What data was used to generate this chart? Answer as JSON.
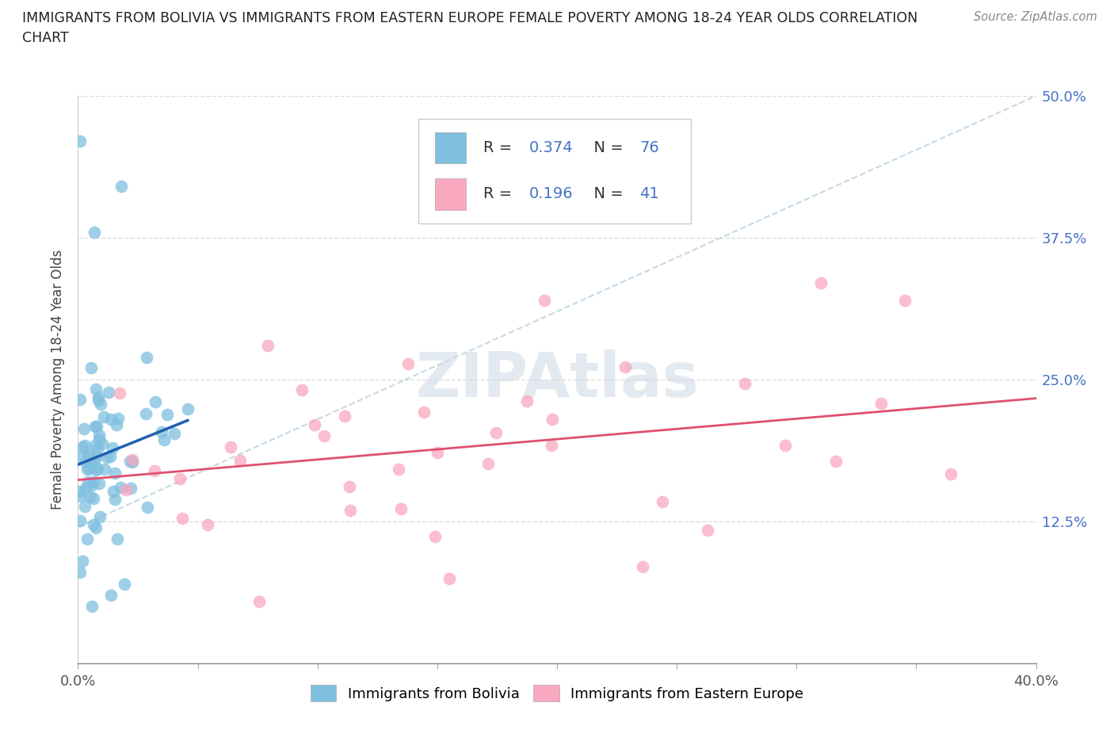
{
  "title": "IMMIGRANTS FROM BOLIVIA VS IMMIGRANTS FROM EASTERN EUROPE FEMALE POVERTY AMONG 18-24 YEAR OLDS CORRELATION\nCHART",
  "source": "Source: ZipAtlas.com",
  "ylabel": "Female Poverty Among 18-24 Year Olds",
  "xlim": [
    0,
    0.4
  ],
  "ylim": [
    0,
    0.5
  ],
  "xtick_vals": [
    0.0,
    0.05,
    0.1,
    0.15,
    0.2,
    0.25,
    0.3,
    0.35,
    0.4
  ],
  "ytick_vals": [
    0.0,
    0.125,
    0.25,
    0.375,
    0.5
  ],
  "xticklabels_major": [
    "0.0%",
    "",
    "",
    "",
    "",
    "",
    "",
    "",
    "40.0%"
  ],
  "yticklabels": [
    "",
    "12.5%",
    "25.0%",
    "37.5%",
    "50.0%"
  ],
  "bolivia_color": "#7fbfdf",
  "eastern_color": "#f9a8c0",
  "bolivia_R": 0.374,
  "bolivia_N": 76,
  "eastern_R": 0.196,
  "eastern_N": 41,
  "line_blue": "#2060b0",
  "line_pink": "#e05070",
  "dash_color": "#b8cfe0",
  "watermark": "ZIPAtlas",
  "legend_label1": "Immigrants from Bolivia",
  "legend_label2": "Immigrants from Eastern Europe"
}
